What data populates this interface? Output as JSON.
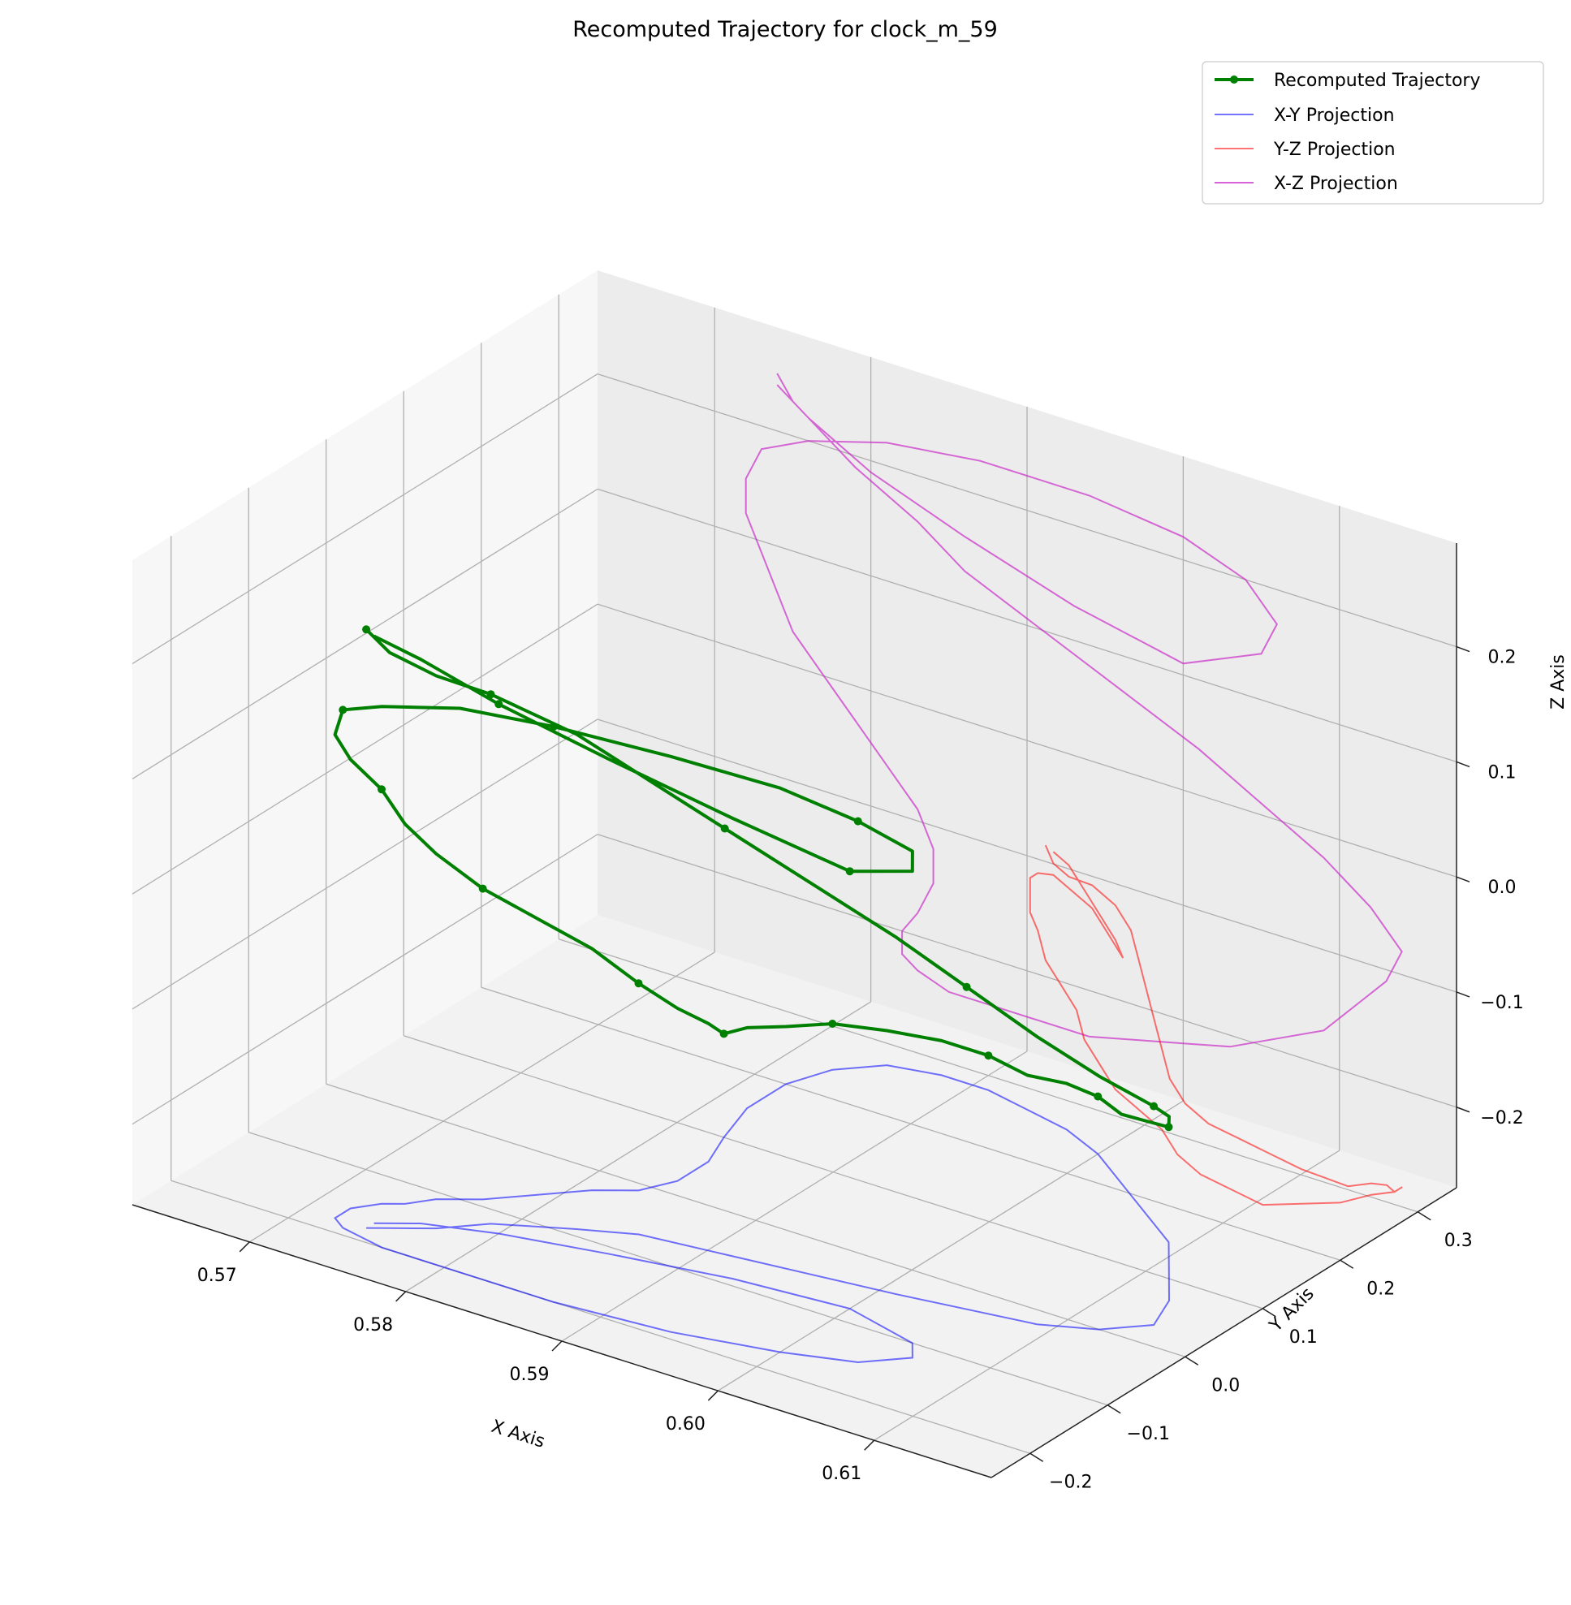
{
  "chart_data": {
    "type": "line",
    "projection": "3d",
    "title": "Recomputed Trajectory for clock_m_59",
    "xlabel": "X Axis",
    "ylabel": "Y Axis",
    "zlabel": "Z Axis",
    "xlim": [
      0.5625,
      0.6175
    ],
    "ylim": [
      -0.25,
      0.35
    ],
    "zlim": [
      -0.27,
      0.29
    ],
    "x_ticks": [
      "0.57",
      "0.58",
      "0.59",
      "0.60",
      "0.61"
    ],
    "y_ticks": [
      "−0.2",
      "−0.1",
      "0.0",
      "0.1",
      "0.2",
      "0.3"
    ],
    "z_ticks": [
      "−0.2",
      "−0.1",
      "0.0",
      "0.1",
      "0.2"
    ],
    "grid": true,
    "legend_position": "top-right",
    "series": [
      {
        "name": "Recomputed Trajectory",
        "color": "#008000",
        "marker": "circle",
        "x": [
          0.574,
          0.575,
          0.577,
          0.579,
          0.583,
          0.586,
          0.591,
          0.596,
          0.601,
          0.605,
          0.609,
          0.612,
          0.614,
          0.613,
          0.611,
          0.609,
          0.606,
          0.603,
          0.6,
          0.597,
          0.594,
          0.591,
          0.588,
          0.585,
          0.583,
          0.582,
          0.582,
          0.583,
          0.584,
          0.584,
          0.583,
          0.581,
          0.579,
          0.577,
          0.575,
          0.574,
          0.573,
          0.572,
          0.572,
          0.573,
          0.576,
          0.581,
          0.587,
          0.594,
          0.6,
          0.604,
          0.606,
          0.605,
          0.6,
          0.593,
          0.586,
          0.58,
          0.576,
          0.574
        ],
        "y": [
          -0.18,
          -0.17,
          -0.15,
          -0.12,
          -0.09,
          -0.07,
          -0.06,
          -0.05,
          -0.04,
          -0.03,
          -0.02,
          0.0,
          0.03,
          0.07,
          0.11,
          0.15,
          0.18,
          0.21,
          0.24,
          0.26,
          0.27,
          0.28,
          0.28,
          0.27,
          0.24,
          0.2,
          0.15,
          0.1,
          0.06,
          0.02,
          -0.01,
          -0.03,
          -0.06,
          -0.09,
          -0.11,
          -0.13,
          -0.14,
          -0.16,
          -0.18,
          -0.19,
          -0.2,
          -0.2,
          -0.2,
          -0.19,
          -0.17,
          -0.15,
          -0.12,
          -0.1,
          -0.08,
          -0.09,
          -0.11,
          -0.13,
          -0.15,
          -0.17
        ],
        "z": [
          0.25,
          0.23,
          0.21,
          0.19,
          0.16,
          0.13,
          0.1,
          0.07,
          0.04,
          0.01,
          -0.02,
          -0.05,
          -0.08,
          -0.11,
          -0.14,
          -0.17,
          -0.19,
          -0.21,
          -0.22,
          -0.23,
          -0.24,
          -0.24,
          -0.24,
          -0.24,
          -0.23,
          -0.22,
          -0.2,
          -0.18,
          -0.15,
          -0.12,
          -0.09,
          -0.06,
          -0.03,
          0.0,
          0.03,
          0.06,
          0.09,
          0.12,
          0.15,
          0.18,
          0.2,
          0.22,
          0.23,
          0.23,
          0.22,
          0.2,
          0.17,
          0.14,
          0.11,
          0.13,
          0.16,
          0.19,
          0.22,
          0.24
        ]
      },
      {
        "name": "X-Y Projection",
        "color": "#0000ff",
        "plane": "z=min"
      },
      {
        "name": "Y-Z Projection",
        "color": "#ff0000",
        "plane": "x=max"
      },
      {
        "name": "X-Z Projection",
        "color": "#c71fc7",
        "plane": "y=max"
      }
    ]
  }
}
